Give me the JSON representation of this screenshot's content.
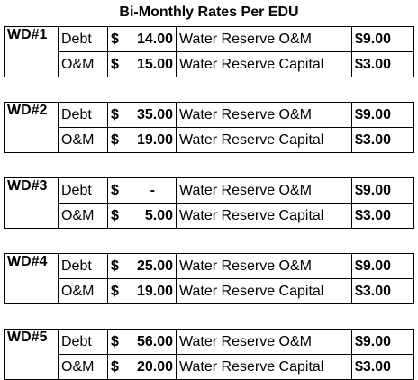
{
  "title": "Bi-Monthly Rates Per EDU",
  "districts": [
    {
      "name": "WD#1",
      "rows": [
        {
          "type": "Debt",
          "amount_symbol": "$",
          "amount_value": "14.00",
          "reserve": "Water Reserve O&M",
          "reserve_amount": "$9.00"
        },
        {
          "type": "O&M",
          "amount_symbol": "$",
          "amount_value": "15.00",
          "reserve": "Water Reserve Capital",
          "reserve_amount": "$3.00"
        }
      ]
    },
    {
      "name": "WD#2",
      "rows": [
        {
          "type": "Debt",
          "amount_symbol": "$",
          "amount_value": "35.00",
          "reserve": "Water Reserve O&M",
          "reserve_amount": "$9.00"
        },
        {
          "type": "O&M",
          "amount_symbol": "$",
          "amount_value": "19.00",
          "reserve": "Water Reserve Capital",
          "reserve_amount": "$3.00"
        }
      ]
    },
    {
      "name": "WD#3",
      "rows": [
        {
          "type": "Debt",
          "amount_symbol": "$",
          "amount_value": "-",
          "reserve": "Water Reserve O&M",
          "reserve_amount": "$9.00"
        },
        {
          "type": "O&M",
          "amount_symbol": "$",
          "amount_value": "5.00",
          "reserve": "Water Reserve Capital",
          "reserve_amount": "$3.00"
        }
      ]
    },
    {
      "name": "WD#4",
      "rows": [
        {
          "type": "Debt",
          "amount_symbol": "$",
          "amount_value": "25.00",
          "reserve": "Water Reserve O&M",
          "reserve_amount": "$9.00"
        },
        {
          "type": "O&M",
          "amount_symbol": "$",
          "amount_value": "19.00",
          "reserve": "Water Reserve Capital",
          "reserve_amount": "$3.00"
        }
      ]
    },
    {
      "name": "WD#5",
      "rows": [
        {
          "type": "Debt",
          "amount_symbol": "$",
          "amount_value": "56.00",
          "reserve": "Water Reserve O&M",
          "reserve_amount": "$9.00"
        },
        {
          "type": "O&M",
          "amount_symbol": "$",
          "amount_value": "20.00",
          "reserve": "Water Reserve Capital",
          "reserve_amount": "$3.00"
        }
      ]
    }
  ]
}
